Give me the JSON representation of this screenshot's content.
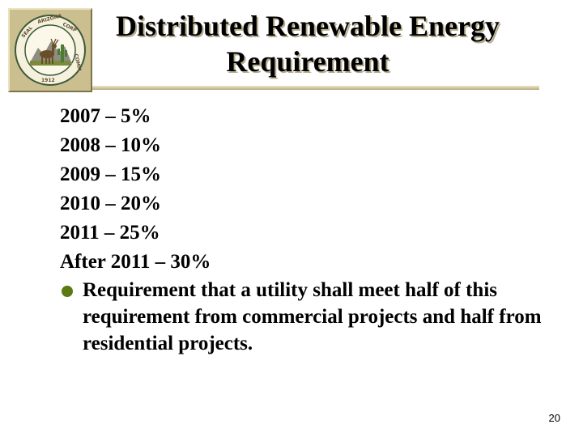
{
  "slide": {
    "title_line1": "Distributed Renewable Energy",
    "title_line2": "Requirement",
    "schedule": [
      "2007 – 5%",
      "2008 – 10%",
      "2009 – 15%",
      "2010 – 20%",
      "2011 – 25%",
      "After 2011 – 30%"
    ],
    "bullet_text": "Requirement that a utility shall meet half of this requirement from commercial projects and half from residential projects.",
    "page_number": "20"
  },
  "seal": {
    "icon": "arizona-corporation-commission-seal",
    "text": "SEAL OF THE ARIZONA CORPORATION COMMISSION 1912"
  },
  "colors": {
    "frame": "#cbbf8f",
    "rule": "#d2c7a0",
    "bullet": "#5c7a12"
  }
}
